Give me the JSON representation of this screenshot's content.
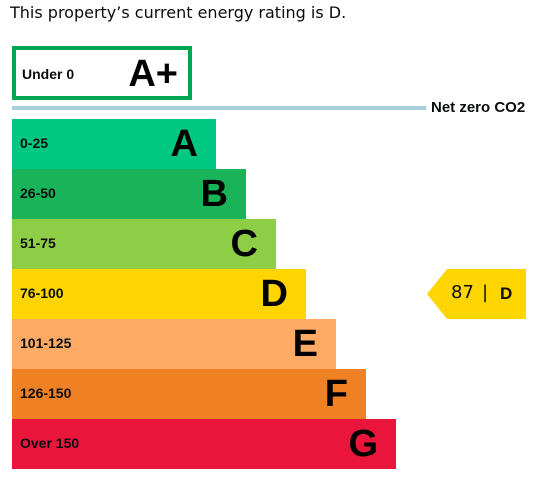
{
  "summary_text": "This property’s current energy rating is D.",
  "aplus": {
    "range": "Under 0",
    "letter": "A+",
    "color": "#00a651"
  },
  "net_zero": {
    "label": "Net zero CO2",
    "line_color": "#a8cfdb"
  },
  "bands": [
    {
      "range": "0-25",
      "letter": "A",
      "color": "#00c781"
    },
    {
      "range": "26-50",
      "letter": "B",
      "color": "#19b459"
    },
    {
      "range": "51-75",
      "letter": "C",
      "color": "#8dce46"
    },
    {
      "range": "76-100",
      "letter": "D",
      "color": "#ffd500"
    },
    {
      "range": "101-125",
      "letter": "E",
      "color": "#fcaa65"
    },
    {
      "range": "126-150",
      "letter": "F",
      "color": "#ef8023"
    },
    {
      "range": "Over 150",
      "letter": "G",
      "color": "#e9153b"
    }
  ],
  "current_rating": {
    "score": "87",
    "separator": "|",
    "letter": "D",
    "color": "#ffd500"
  }
}
